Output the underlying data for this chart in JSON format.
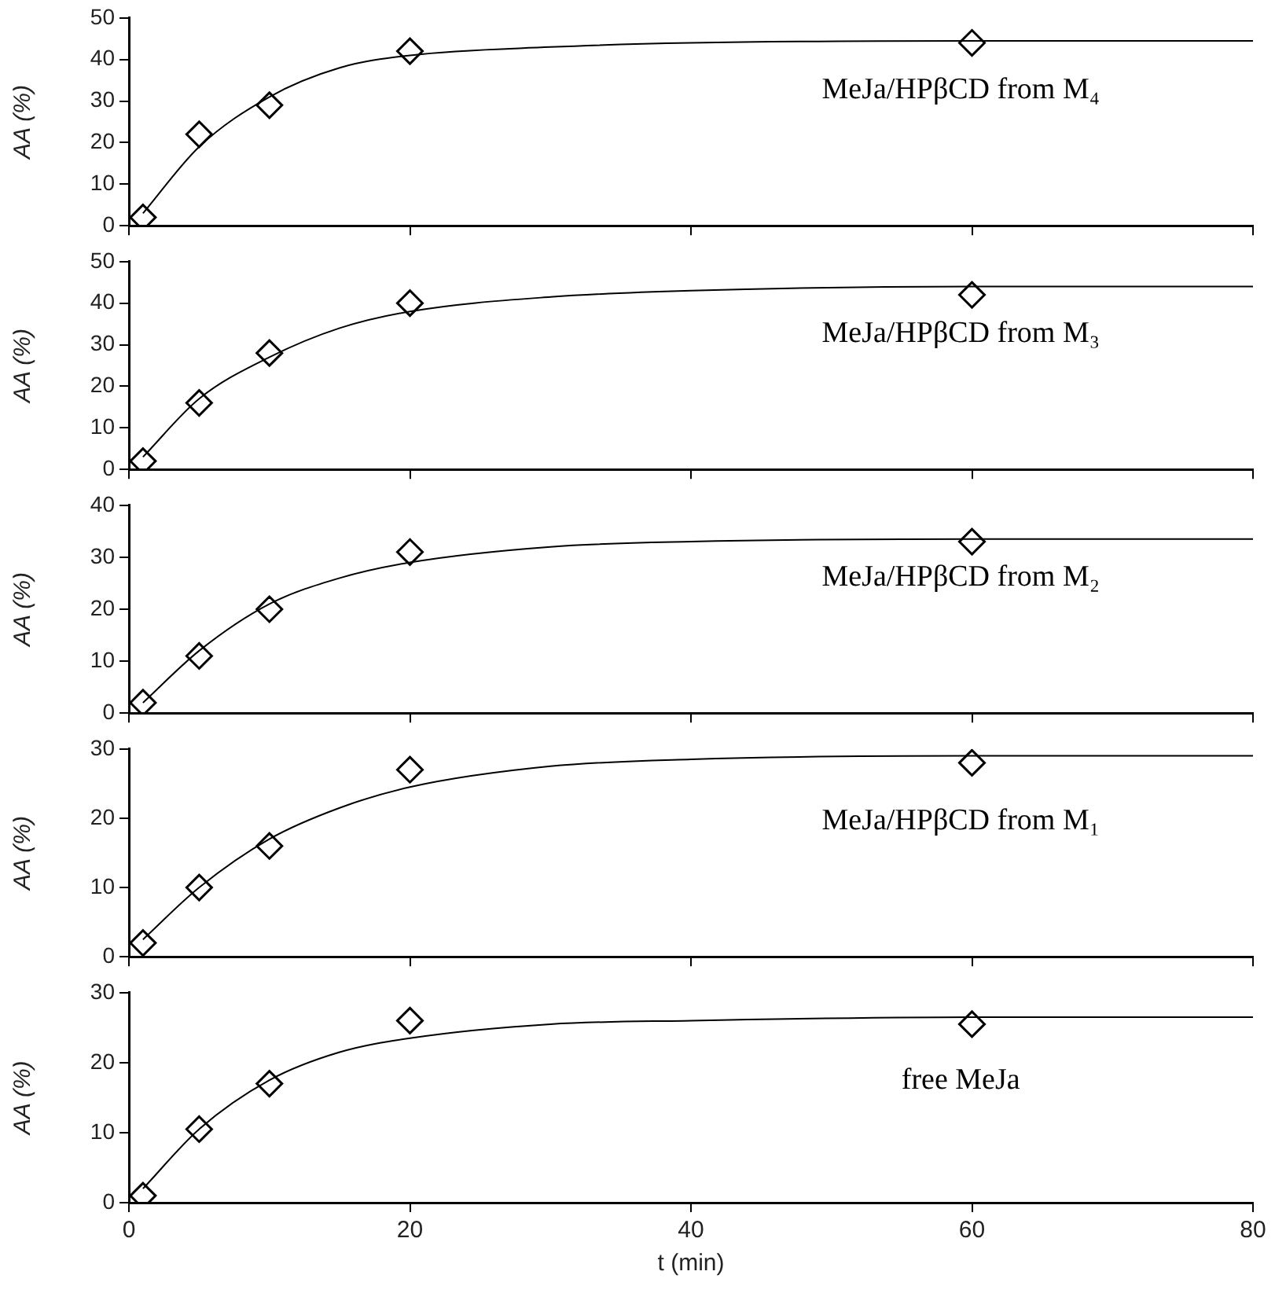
{
  "chart_data": [
    {
      "type": "scatter",
      "ylabel": "AA (%)",
      "xlim": [
        0,
        80
      ],
      "xticks": [
        0,
        20,
        40,
        60,
        80
      ],
      "ylim": [
        0,
        50
      ],
      "yticks": [
        0,
        10,
        20,
        30,
        40,
        50
      ],
      "tick_labels": "y",
      "grid": false,
      "legend": false,
      "annotations": [
        "MeJa/HPβCD from M₄"
      ],
      "series": [
        {
          "color": "#000000",
          "marker": "diamond",
          "x": [
            1,
            5,
            10,
            20,
            60
          ],
          "values": [
            2,
            22,
            29,
            42,
            44
          ]
        },
        {
          "type": "line",
          "color": "#000000",
          "marker": "none",
          "x": [
            1,
            5,
            10,
            15,
            20,
            30,
            40,
            60,
            80
          ],
          "values": [
            3,
            19,
            31,
            38,
            41,
            43,
            44,
            44.5,
            44.5
          ]
        }
      ]
    },
    {
      "type": "scatter",
      "ylabel": "AA (%)",
      "xlim": [
        0,
        80
      ],
      "xticks": [
        0,
        20,
        40,
        60,
        80
      ],
      "ylim": [
        0,
        50
      ],
      "yticks": [
        0,
        10,
        20,
        30,
        40,
        50
      ],
      "tick_labels": "y",
      "grid": false,
      "legend": false,
      "annotations": [
        "MeJa/HPβCD from M₃"
      ],
      "series": [
        {
          "color": "#000000",
          "marker": "diamond",
          "x": [
            1,
            5,
            10,
            20,
            60
          ],
          "values": [
            2,
            16,
            28,
            40,
            42
          ]
        },
        {
          "type": "line",
          "color": "#000000",
          "marker": "none",
          "x": [
            1,
            5,
            10,
            15,
            20,
            30,
            40,
            60,
            80
          ],
          "values": [
            3,
            17,
            27,
            34,
            38,
            41.5,
            43,
            44,
            44
          ]
        }
      ]
    },
    {
      "type": "scatter",
      "ylabel": "AA (%)",
      "xlim": [
        0,
        80
      ],
      "xticks": [
        0,
        20,
        40,
        60,
        80
      ],
      "ylim": [
        0,
        40
      ],
      "yticks": [
        0,
        10,
        20,
        30,
        40
      ],
      "tick_labels": "y",
      "grid": false,
      "legend": false,
      "annotations": [
        "MeJa/HPβCD from M₂"
      ],
      "series": [
        {
          "color": "#000000",
          "marker": "diamond",
          "x": [
            1,
            5,
            10,
            20,
            60
          ],
          "values": [
            2,
            11,
            20,
            31,
            33
          ]
        },
        {
          "type": "line",
          "color": "#000000",
          "marker": "none",
          "x": [
            1,
            5,
            10,
            15,
            20,
            30,
            40,
            60,
            80
          ],
          "values": [
            2,
            12,
            21,
            26,
            29,
            32,
            33,
            33.5,
            33.5
          ]
        }
      ]
    },
    {
      "type": "scatter",
      "ylabel": "AA (%)",
      "xlim": [
        0,
        80
      ],
      "xticks": [
        0,
        20,
        40,
        60,
        80
      ],
      "ylim": [
        0,
        30
      ],
      "yticks": [
        0,
        10,
        20,
        30
      ],
      "tick_labels": "y",
      "grid": false,
      "legend": false,
      "annotations": [
        "MeJa/HPβCD from M₁"
      ],
      "series": [
        {
          "color": "#000000",
          "marker": "diamond",
          "x": [
            1,
            5,
            10,
            20,
            60
          ],
          "values": [
            2,
            10,
            16,
            27,
            28
          ]
        },
        {
          "type": "line",
          "color": "#000000",
          "marker": "none",
          "x": [
            1,
            5,
            10,
            15,
            20,
            30,
            40,
            60,
            80
          ],
          "values": [
            2.5,
            10,
            17,
            21.5,
            24.5,
            27.5,
            28.5,
            29,
            29
          ]
        }
      ]
    },
    {
      "type": "scatter",
      "xlabel": "t (min)",
      "ylabel": "AA (%)",
      "xlim": [
        0,
        80
      ],
      "xticks": [
        0,
        20,
        40,
        60,
        80
      ],
      "ylim": [
        0,
        30
      ],
      "yticks": [
        0,
        10,
        20,
        30
      ],
      "grid": false,
      "legend": false,
      "annotations": [
        "free MeJa"
      ],
      "series": [
        {
          "color": "#000000",
          "marker": "diamond",
          "x": [
            1,
            5,
            10,
            20,
            60
          ],
          "values": [
            1,
            10.5,
            17,
            26,
            25.5
          ]
        },
        {
          "type": "line",
          "color": "#000000",
          "marker": "none",
          "x": [
            1,
            5,
            10,
            15,
            20,
            30,
            40,
            60,
            80
          ],
          "values": [
            2,
            10.5,
            17.5,
            21.5,
            23.5,
            25.5,
            26,
            26.5,
            26.5
          ]
        }
      ]
    }
  ]
}
